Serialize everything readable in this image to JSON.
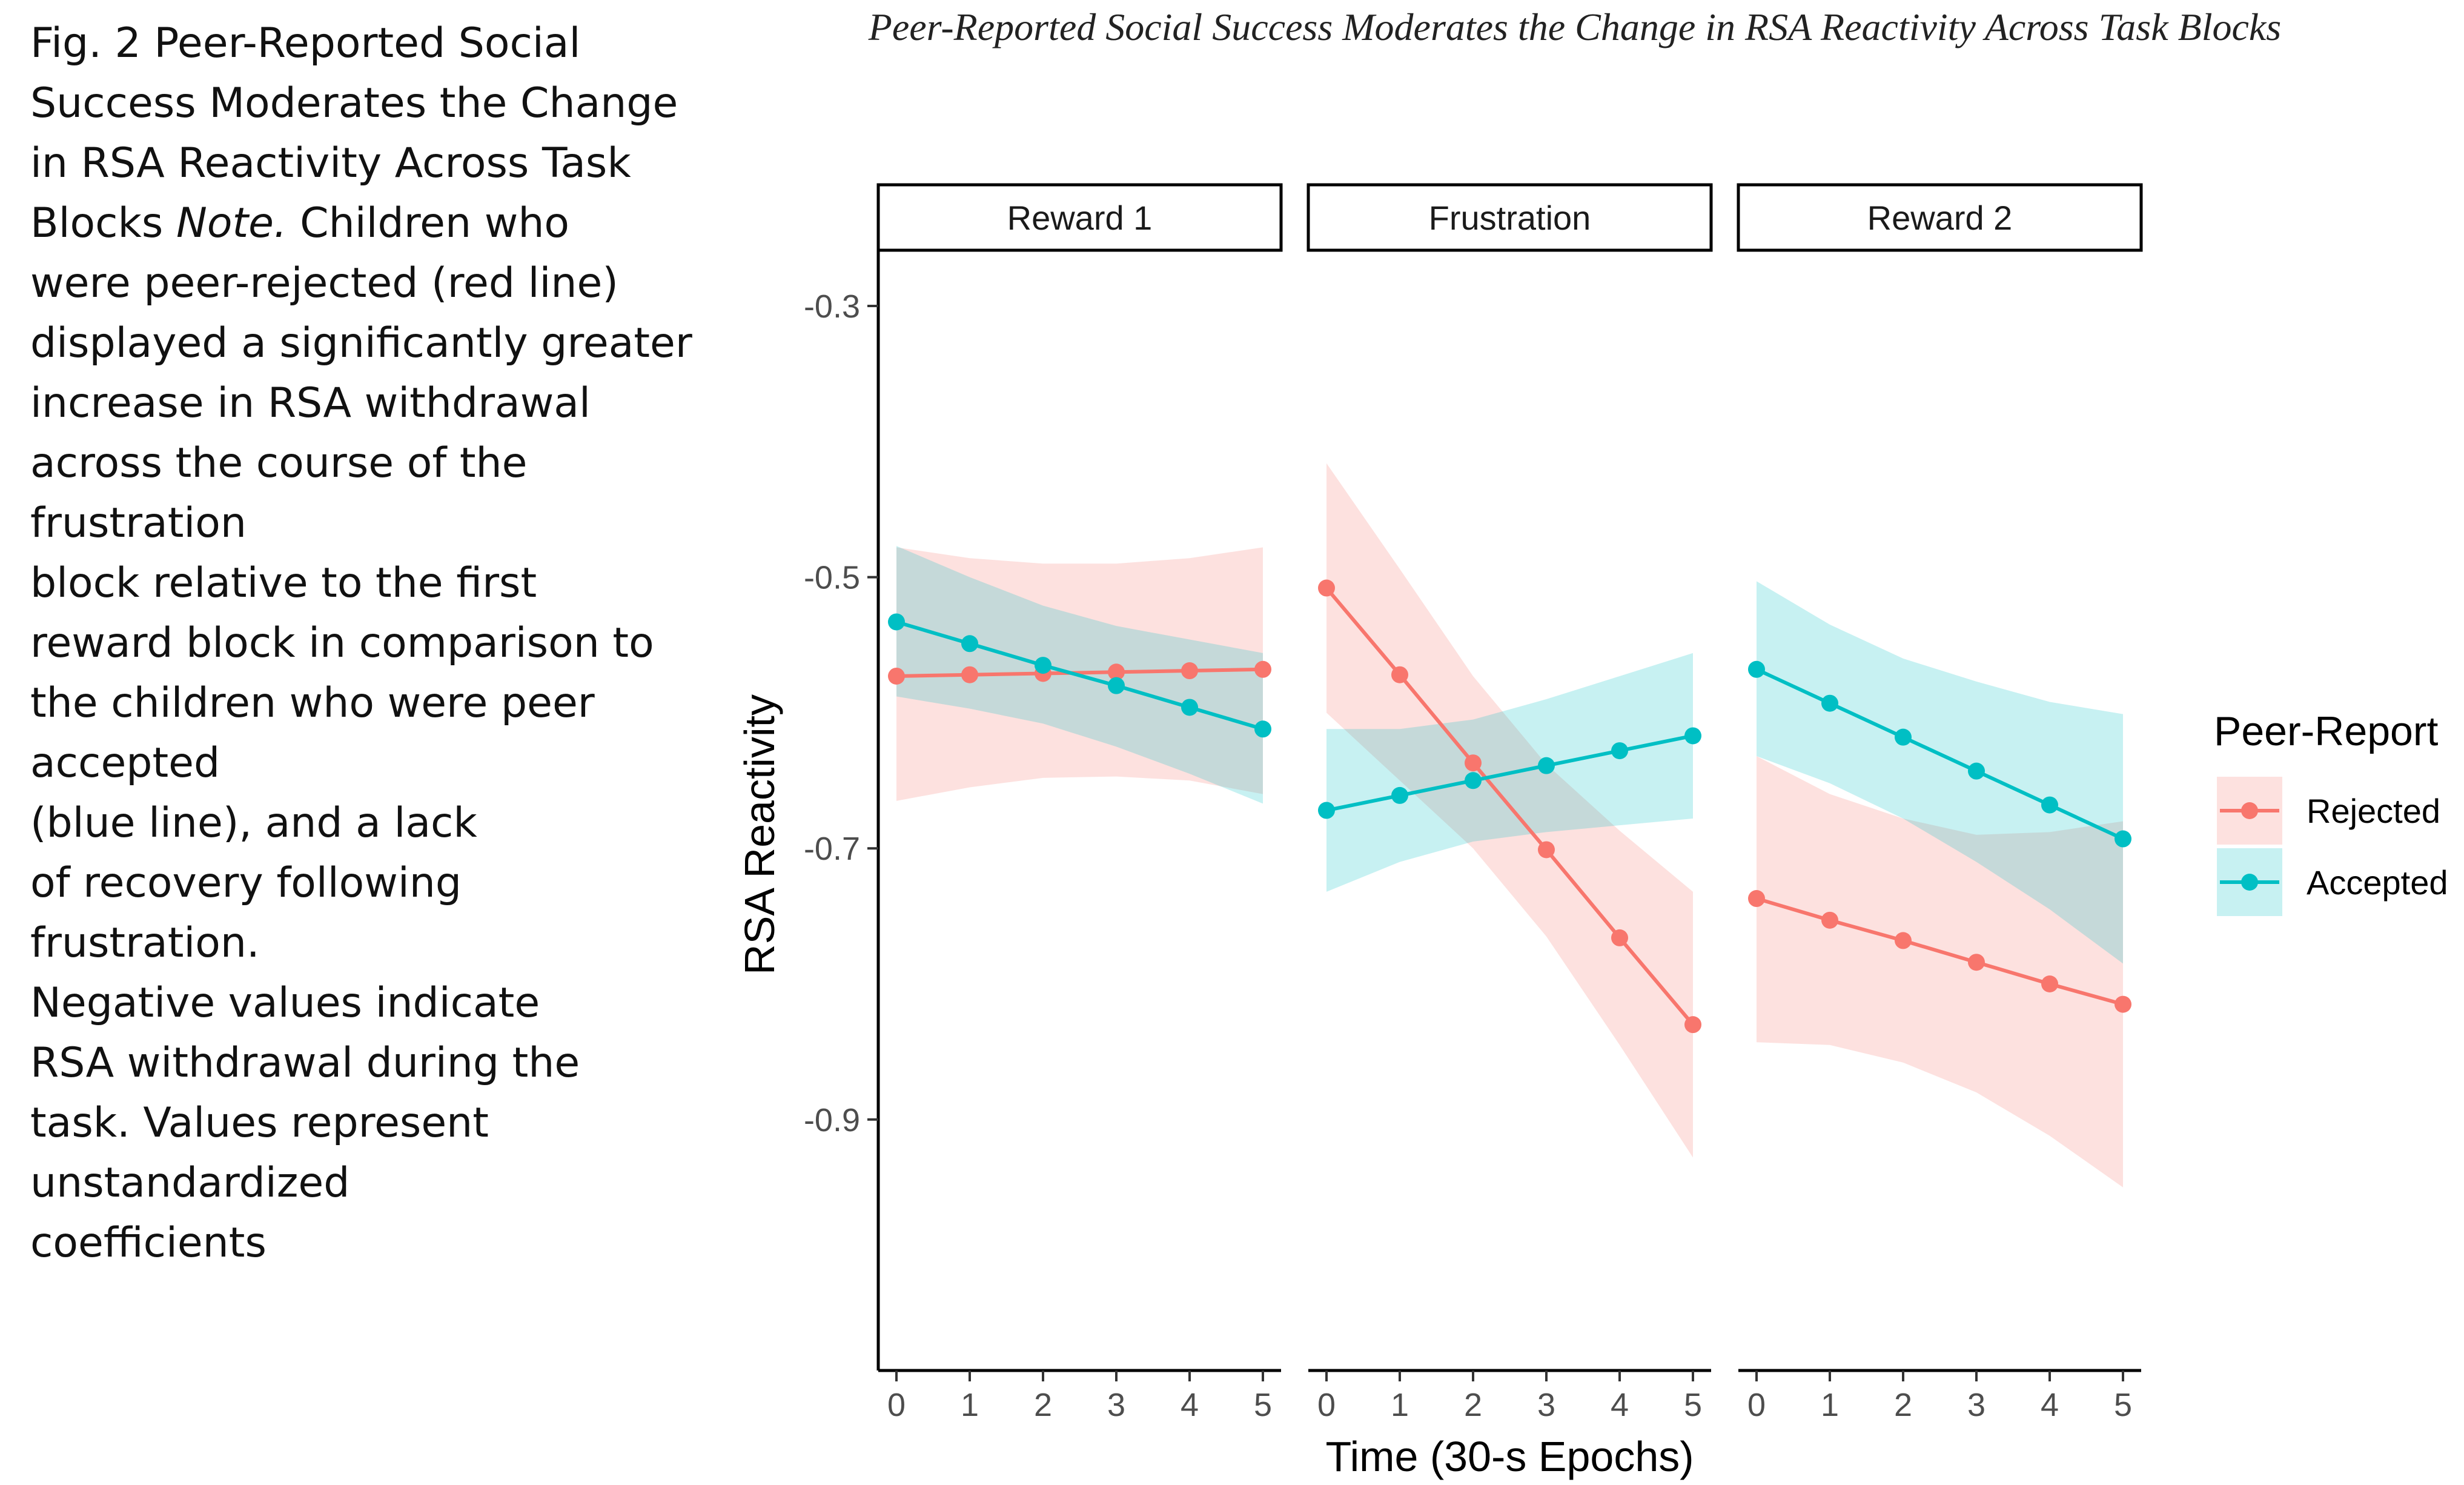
{
  "caption": {
    "lines": [
      "Fig. 2 Peer-Reported Social",
      "Success Moderates the Change",
      "in RSA Reactivity Across Task",
      "Blocks",
      "were peer-rejected (red line)",
      "displayed a significantly greater",
      "increase in RSA withdrawal",
      "across the course of the",
      "frustration",
      "block relative to the first",
      "reward block in comparison to",
      "the children who were peer",
      "accepted",
      "(blue line), and a lack",
      "of recovery following",
      "frustration.",
      "Negative values indicate",
      "RSA withdrawal during the",
      "task. Values represent",
      "unstandardized",
      "coefficients"
    ],
    "note_label": "Note.",
    "note_rest": " Children who"
  },
  "chart_data": {
    "type": "line",
    "title": "Peer-Reported Social Success Moderates the Change in RSA Reactivity Across Task Blocks",
    "xlabel": "Time (30-s Epochs)",
    "ylabel": "RSA Reactivity",
    "ylim": [
      -1.05,
      -0.27
    ],
    "yticks": [
      -0.3,
      -0.5,
      -0.7,
      -0.9
    ],
    "ytick_labels": [
      "-0.3",
      "-0.5",
      "-0.7",
      "-0.9"
    ],
    "x": [
      0,
      1,
      2,
      3,
      4,
      5
    ],
    "x_tick_labels": [
      "0",
      "1",
      "2",
      "3",
      "4",
      "5"
    ],
    "grid": false,
    "legend": {
      "title": "Peer-Report",
      "position": "right",
      "entries": [
        "Rejected",
        "Accepted"
      ]
    },
    "colors": {
      "Rejected": "#F8766D",
      "Accepted": "#00BFC4",
      "Rejected_band": "#FFD7D4",
      "Accepted_band": "#C9EEF0",
      "overlap_band": "#D5DDDC"
    },
    "panels": [
      {
        "label": "Reward 1",
        "series": [
          {
            "name": "Rejected",
            "values": [
              -0.573,
              -0.572,
              -0.571,
              -0.57,
              -0.569,
              -0.568
            ],
            "ci_lower": [
              -0.665,
              -0.655,
              -0.648,
              -0.647,
              -0.65,
              -0.66
            ],
            "ci_upper": [
              -0.478,
              -0.486,
              -0.49,
              -0.49,
              -0.486,
              -0.478
            ]
          },
          {
            "name": "Accepted",
            "values": [
              -0.533,
              -0.549,
              -0.565,
              -0.58,
              -0.596,
              -0.612
            ],
            "ci_lower": [
              -0.588,
              -0.597,
              -0.608,
              -0.625,
              -0.645,
              -0.667
            ],
            "ci_upper": [
              -0.477,
              -0.5,
              -0.521,
              -0.536,
              -0.546,
              -0.556
            ]
          }
        ]
      },
      {
        "label": "Frustration",
        "series": [
          {
            "name": "Rejected",
            "values": [
              -0.508,
              -0.572,
              -0.637,
              -0.701,
              -0.766,
              -0.83
            ],
            "ci_lower": [
              -0.6,
              -0.65,
              -0.7,
              -0.765,
              -0.845,
              -0.928
            ],
            "ci_upper": [
              -0.416,
              -0.494,
              -0.573,
              -0.638,
              -0.687,
              -0.732
            ]
          },
          {
            "name": "Accepted",
            "values": [
              -0.672,
              -0.661,
              -0.65,
              -0.639,
              -0.628,
              -0.617
            ],
            "ci_lower": [
              -0.732,
              -0.71,
              -0.695,
              -0.688,
              -0.683,
              -0.678
            ],
            "ci_upper": [
              -0.612,
              -0.612,
              -0.605,
              -0.59,
              -0.573,
              -0.556
            ]
          }
        ]
      },
      {
        "label": "Reward 2",
        "series": [
          {
            "name": "Rejected",
            "values": [
              -0.737,
              -0.753,
              -0.768,
              -0.784,
              -0.8,
              -0.815
            ],
            "ci_lower": [
              -0.843,
              -0.845,
              -0.858,
              -0.88,
              -0.912,
              -0.95
            ],
            "ci_upper": [
              -0.632,
              -0.66,
              -0.678,
              -0.69,
              -0.688,
              -0.68
            ]
          },
          {
            "name": "Accepted",
            "values": [
              -0.568,
              -0.593,
              -0.618,
              -0.643,
              -0.668,
              -0.693
            ],
            "ci_lower": [
              -0.632,
              -0.652,
              -0.678,
              -0.71,
              -0.745,
              -0.785
            ],
            "ci_upper": [
              -0.503,
              -0.535,
              -0.56,
              -0.577,
              -0.592,
              -0.601
            ]
          }
        ]
      }
    ]
  }
}
